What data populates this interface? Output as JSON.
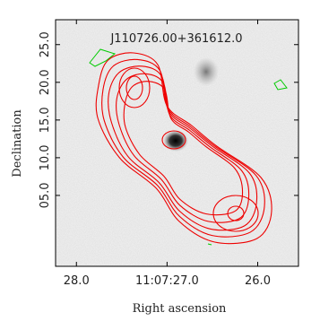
{
  "chart_data": {
    "type": "image",
    "title": "J110726.00+361612.0",
    "x_label": "Right ascension",
    "y_label": "Declination",
    "xlim": [
      28.23,
      25.55
    ],
    "xticks": [
      {
        "value": 28,
        "label": "28.0"
      },
      {
        "value": 27,
        "label": "11:07:27.0"
      },
      {
        "value": 26,
        "label": "26.0"
      }
    ],
    "ylim": [
      -4.4,
      28.3
    ],
    "yticks": [
      {
        "value": 5,
        "label": "05.0"
      },
      {
        "value": 10,
        "label": "10.0"
      },
      {
        "value": 15,
        "label": "15.0"
      },
      {
        "value": 20,
        "label": "20.0"
      },
      {
        "value": 25,
        "label": "25.0"
      }
    ]
  }
}
